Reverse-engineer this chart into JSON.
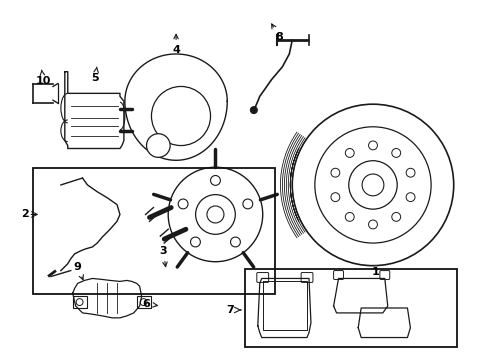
{
  "bg_color": "#ffffff",
  "line_color": "#1a1a1a",
  "box_color": "#111111",
  "label_color": "#000000",
  "fig_width": 4.89,
  "fig_height": 3.6,
  "dpi": 100
}
